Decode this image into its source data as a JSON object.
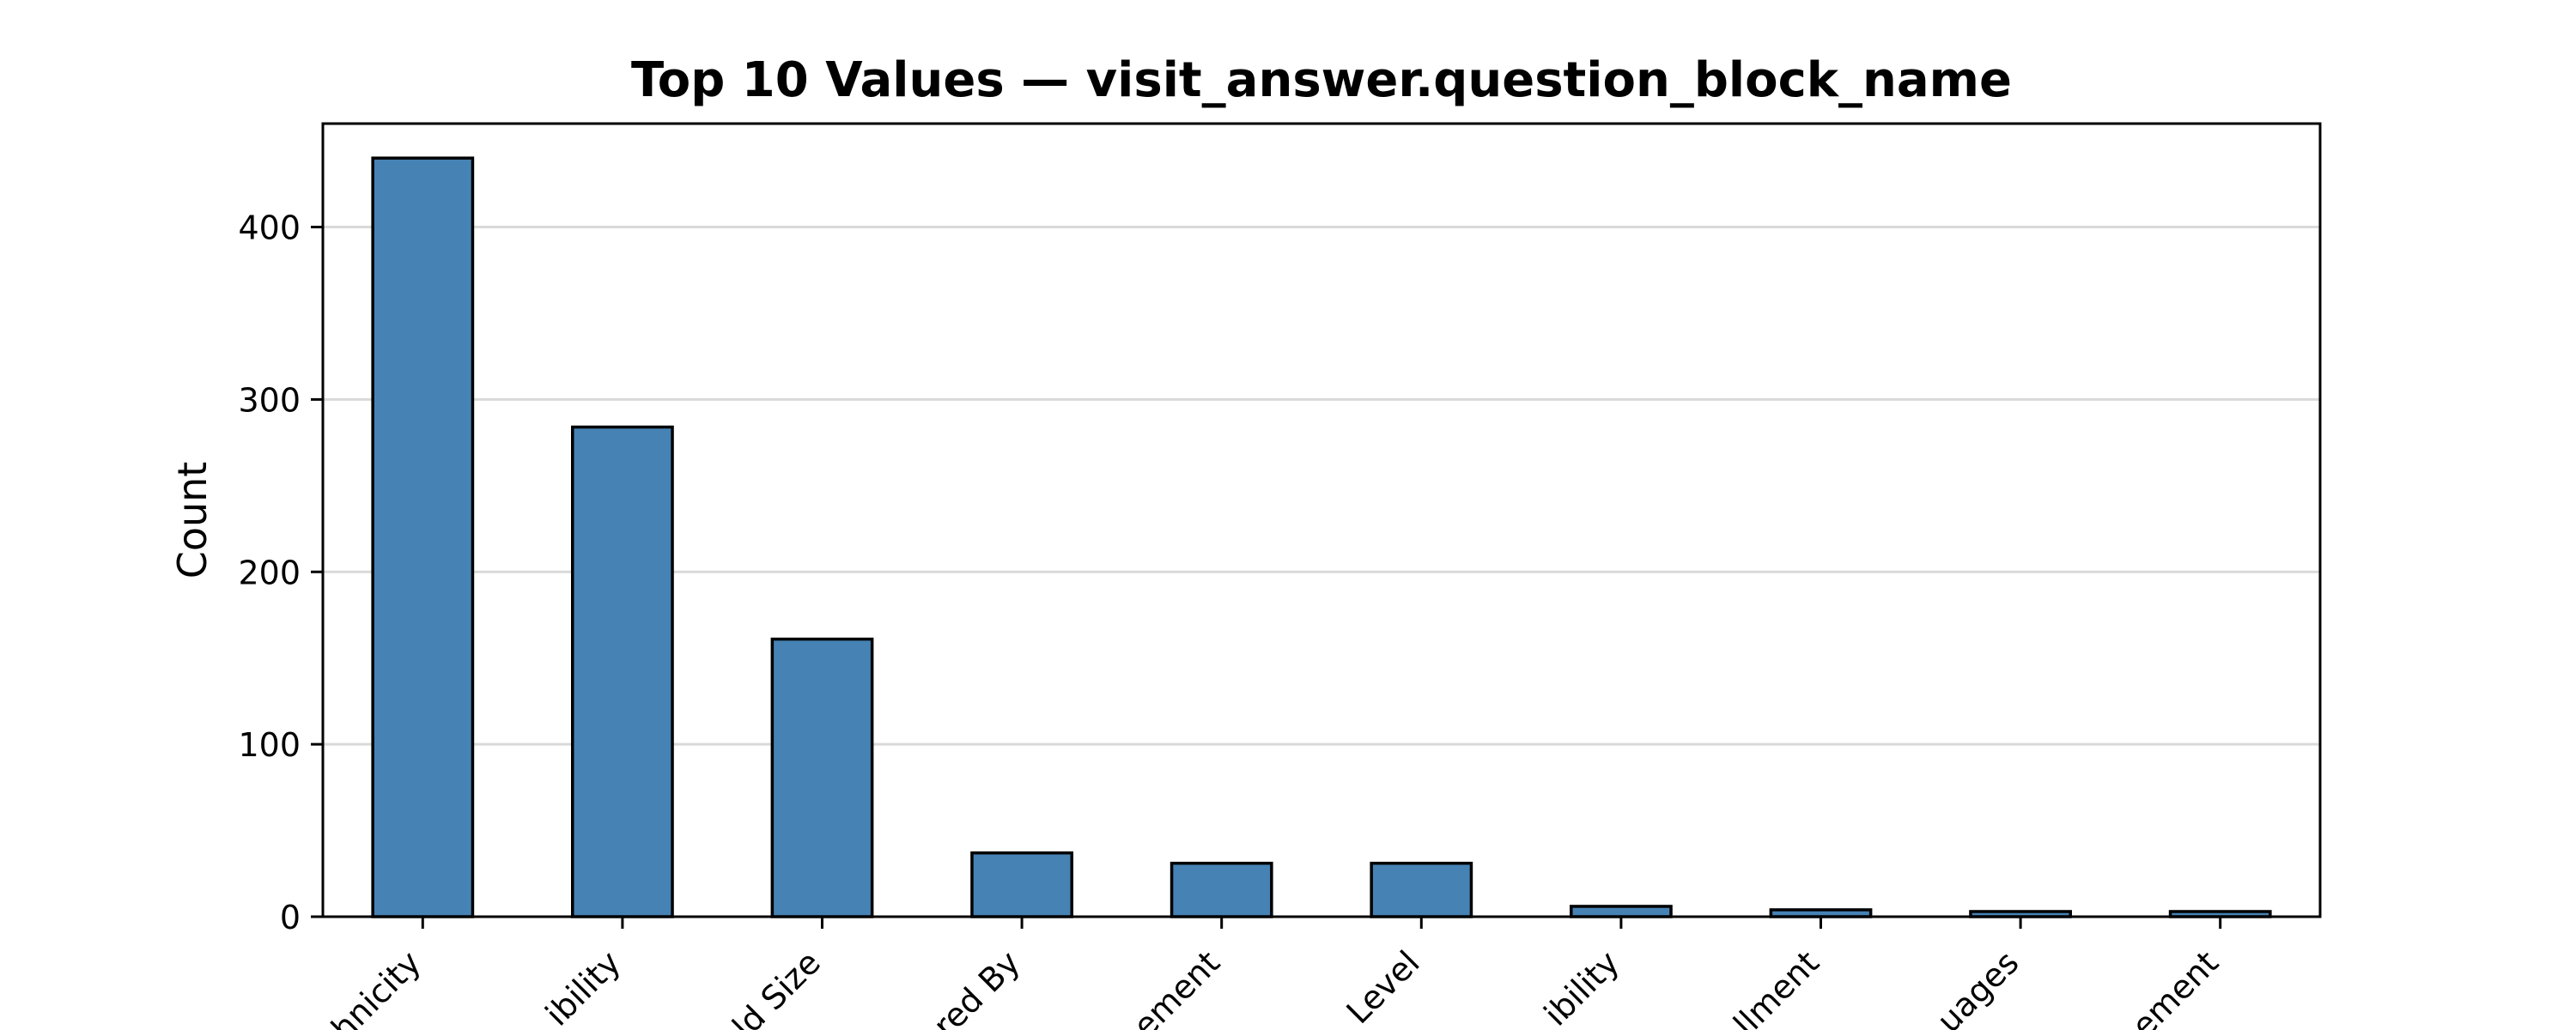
{
  "chart_data": {
    "type": "bar",
    "title": "Top 10 Values — visit_answer.question_block_name",
    "xlabel": "",
    "ylabel": "Count",
    "categories": [
      "hnicity",
      "ibility",
      "ld Size",
      "red By",
      "ement",
      "Level",
      "ibility",
      "llment",
      "uages",
      "ement"
    ],
    "values": [
      440,
      284,
      161,
      37,
      31,
      31,
      6,
      4,
      3,
      3
    ],
    "ylim": [
      0,
      460
    ],
    "yticks": [
      0,
      100,
      200,
      300,
      400
    ],
    "grid": true,
    "bar_color": "#4682b4",
    "edge_color": "#000000",
    "grid_color": "#d9d9d9"
  }
}
